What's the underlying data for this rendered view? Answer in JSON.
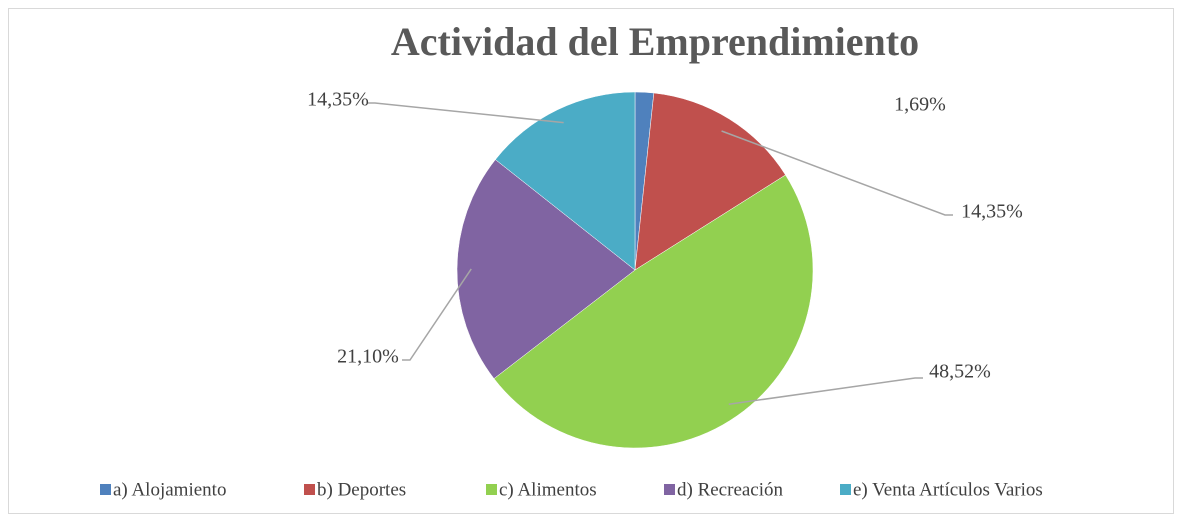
{
  "chart_data": {
    "type": "pie",
    "title": "Actividad del Emprendimiento",
    "categories": [
      "a) Alojamiento",
      "b) Deportes",
      "c) Alimentos",
      "d) Recreación",
      "e) Venta Artículos Varios"
    ],
    "values": [
      1.69,
      14.35,
      48.52,
      21.1,
      14.35
    ],
    "value_labels": [
      "1,69%",
      "14,35%",
      "48,52%",
      "21,10%",
      "14,35%"
    ],
    "colors": [
      "#4f81bd",
      "#c0504d",
      "#92d050",
      "#8064a2",
      "#4bacc6"
    ],
    "legend": "bottom"
  }
}
